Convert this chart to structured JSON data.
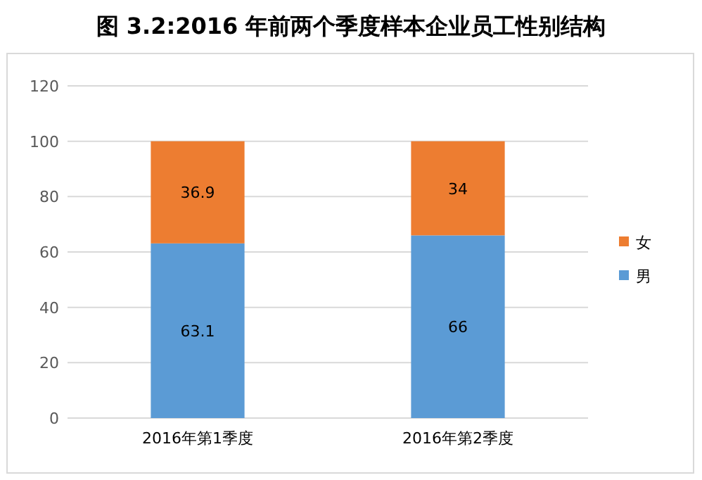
{
  "chart_data": {
    "type": "bar",
    "title": "图 3.2:2016 年前两个季度样本企业员工性别结构",
    "categories": [
      "2016年第1季度",
      "2016年第2季度"
    ],
    "series": [
      {
        "name": "男",
        "color": "#5b9bd5",
        "values": [
          63.1,
          66
        ]
      },
      {
        "name": "女",
        "color": "#ed7d31",
        "values": [
          36.9,
          34
        ]
      }
    ],
    "stacked": true,
    "ylim": [
      0,
      120
    ],
    "yticks": [
      0,
      20,
      40,
      60,
      80,
      100,
      120
    ],
    "grid": "y",
    "legend": "right",
    "data_labels": true
  }
}
